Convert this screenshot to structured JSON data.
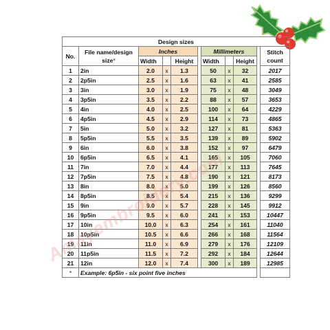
{
  "table": {
    "caption": "Design sizes",
    "inches_label": "Inches",
    "mm_label": "Millimeters",
    "col_no": "No.",
    "col_name": "File name/design size",
    "col_name_mark": "*",
    "col_width": "Width",
    "col_height": "Height",
    "col_stitch": "Stitch count",
    "sep": "x",
    "rows": [
      {
        "no": "1",
        "name": "2in",
        "w_in": "2.0",
        "h_in": "1.3",
        "w_mm": "50",
        "h_mm": "32",
        "stitch": "2017"
      },
      {
        "no": "2",
        "name": "2p5in",
        "w_in": "2.5",
        "h_in": "1.6",
        "w_mm": "63",
        "h_mm": "41",
        "stitch": "2585"
      },
      {
        "no": "3",
        "name": "3in",
        "w_in": "3.0",
        "h_in": "1.9",
        "w_mm": "75",
        "h_mm": "48",
        "stitch": "3049"
      },
      {
        "no": "4",
        "name": "3p5in",
        "w_in": "3.5",
        "h_in": "2.2",
        "w_mm": "88",
        "h_mm": "57",
        "stitch": "3653"
      },
      {
        "no": "5",
        "name": "4in",
        "w_in": "4.0",
        "h_in": "2.5",
        "w_mm": "100",
        "h_mm": "64",
        "stitch": "4229"
      },
      {
        "no": "6",
        "name": "4p5in",
        "w_in": "4.5",
        "h_in": "2.9",
        "w_mm": "114",
        "h_mm": "73",
        "stitch": "4865"
      },
      {
        "no": "7",
        "name": "5in",
        "w_in": "5.0",
        "h_in": "3.2",
        "w_mm": "127",
        "h_mm": "81",
        "stitch": "5363"
      },
      {
        "no": "8",
        "name": "5p5in",
        "w_in": "5.5",
        "h_in": "3.5",
        "w_mm": "139",
        "h_mm": "89",
        "stitch": "5902"
      },
      {
        "no": "9",
        "name": "6in",
        "w_in": "6.0",
        "h_in": "3.8",
        "w_mm": "152",
        "h_mm": "97",
        "stitch": "6479"
      },
      {
        "no": "10",
        "name": "6p5in",
        "w_in": "6.5",
        "h_in": "4.1",
        "w_mm": "165",
        "h_mm": "105",
        "stitch": "7060"
      },
      {
        "no": "11",
        "name": "7in",
        "w_in": "7.0",
        "h_in": "4.4",
        "w_mm": "177",
        "h_mm": "113",
        "stitch": "7645"
      },
      {
        "no": "12",
        "name": "7p5in",
        "w_in": "7.5",
        "h_in": "4.8",
        "w_mm": "190",
        "h_mm": "121",
        "stitch": "8173"
      },
      {
        "no": "13",
        "name": "8in",
        "w_in": "8.0",
        "h_in": "5.0",
        "w_mm": "199",
        "h_mm": "126",
        "stitch": "8560"
      },
      {
        "no": "14",
        "name": "8p5in",
        "w_in": "8.5",
        "h_in": "5.4",
        "w_mm": "215",
        "h_mm": "136",
        "stitch": "9299"
      },
      {
        "no": "15",
        "name": "9in",
        "w_in": "9.0",
        "h_in": "5.7",
        "w_mm": "228",
        "h_mm": "145",
        "stitch": "9912"
      },
      {
        "no": "16",
        "name": "9p5in",
        "w_in": "9.5",
        "h_in": "6.0",
        "w_mm": "241",
        "h_mm": "153",
        "stitch": "10447"
      },
      {
        "no": "17",
        "name": "10in",
        "w_in": "10.0",
        "h_in": "6.3",
        "w_mm": "254",
        "h_mm": "161",
        "stitch": "11040"
      },
      {
        "no": "18",
        "name": "10p5in",
        "w_in": "10.5",
        "h_in": "6.6",
        "w_mm": "266",
        "h_mm": "168",
        "stitch": "11564"
      },
      {
        "no": "19",
        "name": "11in",
        "w_in": "11.0",
        "h_in": "6.9",
        "w_mm": "279",
        "h_mm": "176",
        "stitch": "12109"
      },
      {
        "no": "20",
        "name": "11p5in",
        "w_in": "11.5",
        "h_in": "7.2",
        "w_mm": "292",
        "h_mm": "184",
        "stitch": "12644"
      },
      {
        "no": "21",
        "name": "12in",
        "w_in": "12.0",
        "h_in": "7.4",
        "w_mm": "300",
        "h_mm": "189",
        "stitch": "12985"
      }
    ],
    "footnote_mark": "*",
    "footnote": "Example: 6p5in - six point five inches"
  },
  "watermark": "Amayembroidery.com",
  "decoration": {
    "icon": "holly-icon",
    "leaf_color": "#2e8b3a",
    "leaf_edge": "#9ad07a",
    "berry_color": "#e03a2e"
  }
}
